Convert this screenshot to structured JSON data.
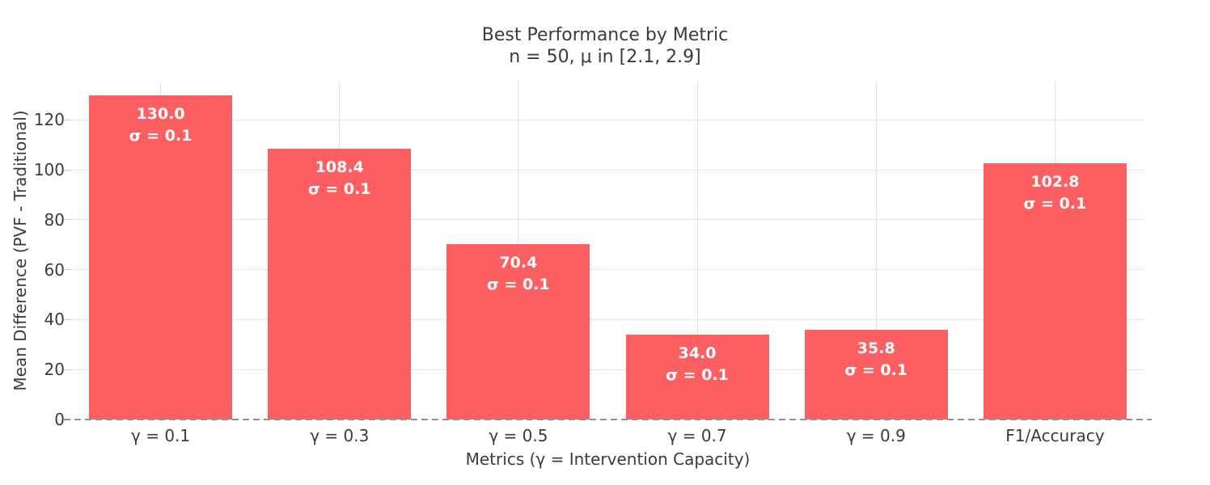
{
  "chart_data": {
    "type": "bar",
    "title": "Best Performance by Metric",
    "subtitle": "n = 50, μ in [2.1, 2.9]",
    "xlabel": "Metrics (γ = Intervention Capacity)",
    "ylabel": "Mean Difference (PVF - Traditional)",
    "categories": [
      "γ = 0.1",
      "γ = 0.3",
      "γ = 0.5",
      "γ = 0.7",
      "γ = 0.9",
      "F1/Accuracy"
    ],
    "values": [
      130.0,
      108.4,
      70.4,
      34.0,
      35.8,
      102.8
    ],
    "sigmas": [
      0.1,
      0.1,
      0.1,
      0.1,
      0.1,
      0.1
    ],
    "sigma_symbol": "σ",
    "yticks": [
      0,
      20,
      40,
      60,
      80,
      100,
      120
    ],
    "ylim": [
      0,
      135.7
    ],
    "bar_width_fraction": 0.8,
    "grid": true,
    "legend": "none",
    "colors": {
      "bar": "#fc5f62",
      "grid": "#e3e3e3",
      "zero_line": "#909090",
      "text": "#3b3b3b",
      "bar_label_text": "#ffffff",
      "background": "#ffffff"
    }
  }
}
